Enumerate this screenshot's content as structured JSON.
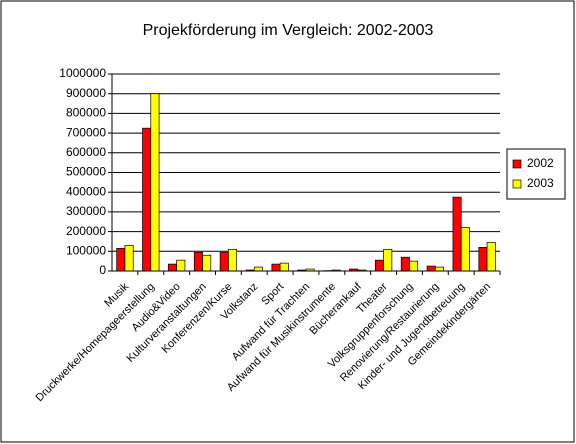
{
  "chart_data": {
    "type": "bar",
    "title": "Projekförderung im Vergleich: 2002-2003",
    "categories": [
      "Musik",
      "Druckwerke/Homepageerstellung",
      "Audio&Video",
      "Kulturveranstaltungen",
      "Konferenzen/Kurse",
      "Volkstanz",
      "Sport",
      "Aufwand für Trachten",
      "Aufwand für Musikinstrumente",
      "Bücherankauf",
      "Theater",
      "Volksgruppenforschung",
      "Renovierung/Restaurierung",
      "Kinder- und Jugendbetreuung",
      "Gemeindekindergärten"
    ],
    "series": [
      {
        "name": "2002",
        "color": "#ff0000",
        "values": [
          115000,
          725000,
          35000,
          95000,
          95000,
          5000,
          35000,
          5000,
          2000,
          10000,
          55000,
          70000,
          25000,
          375000,
          120000
        ]
      },
      {
        "name": "2003",
        "color": "#ffff00",
        "values": [
          130000,
          900000,
          55000,
          80000,
          110000,
          20000,
          40000,
          10000,
          5000,
          5000,
          110000,
          50000,
          20000,
          220000,
          145000
        ]
      }
    ],
    "ylim": [
      0,
      1000000
    ],
    "yticks": [
      0,
      100000,
      200000,
      300000,
      400000,
      500000,
      600000,
      700000,
      800000,
      900000,
      1000000
    ],
    "grid": true,
    "legend": "right"
  }
}
